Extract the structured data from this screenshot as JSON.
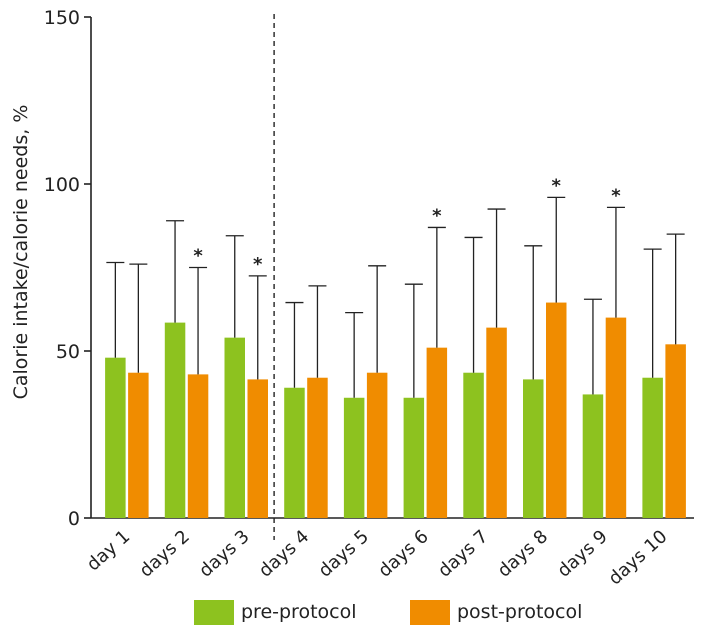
{
  "chart_data": {
    "type": "bar",
    "title": "",
    "xlabel": "",
    "ylabel": "Calorie intake/calorie needs, %",
    "ylim": [
      0,
      150
    ],
    "yticks": [
      0,
      50,
      100,
      150
    ],
    "categories": [
      "day 1",
      "days 2",
      "days 3",
      "days 4",
      "days 5",
      "days 6",
      "days 7",
      "days 8",
      "days 9",
      "days 10"
    ],
    "series": [
      {
        "name": "pre-protocol",
        "color": "#8dc21f",
        "values": [
          48,
          58.5,
          54,
          39,
          36,
          36,
          43.5,
          41.5,
          37,
          42
        ],
        "error_upper": [
          76.5,
          89,
          84.5,
          64.5,
          61.5,
          70,
          84,
          81.5,
          65.5,
          80.5
        ]
      },
      {
        "name": "post-protocol",
        "color": "#f08c00",
        "values": [
          43.5,
          43,
          41.5,
          42,
          43.5,
          51,
          57,
          64.5,
          60,
          52
        ],
        "error_upper": [
          76,
          75,
          72.5,
          69.5,
          75.5,
          87,
          92.5,
          96,
          93,
          85
        ]
      }
    ],
    "significance": [
      {
        "category": "days 2",
        "series": "post-protocol",
        "mark": "*"
      },
      {
        "category": "days 3",
        "series": "post-protocol",
        "mark": "*"
      },
      {
        "category": "days 6",
        "series": "post-protocol",
        "mark": "*"
      },
      {
        "category": "days 8",
        "series": "post-protocol",
        "mark": "*"
      },
      {
        "category": "days 9",
        "series": "post-protocol",
        "mark": "*"
      }
    ],
    "divider_after_category": "days 3",
    "legend": [
      "pre-protocol",
      "post-protocol"
    ],
    "legend_position": "bottom",
    "grid": false
  }
}
